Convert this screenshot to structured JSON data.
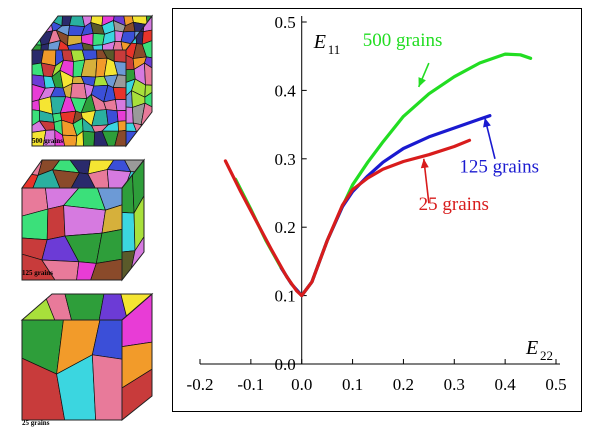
{
  "panels": [
    {
      "label": "500 grains"
    },
    {
      "label": "125 grains"
    },
    {
      "label": "25 grains"
    }
  ],
  "chart_data": {
    "type": "line",
    "title": "",
    "xlabel": "E",
    "xlabel_sub": "22",
    "ylabel": "E",
    "ylabel_sub": "11",
    "xlim": [
      -0.2,
      0.5
    ],
    "ylim": [
      0.0,
      0.5
    ],
    "x_ticks": [
      "-0.2",
      "-0.1",
      "0.0",
      "0.1",
      "0.2",
      "0.3",
      "0.4",
      "0.5"
    ],
    "y_ticks": [
      "0.0",
      "0.1",
      "0.2",
      "0.3",
      "0.4",
      "0.5"
    ],
    "grid": false,
    "series": [
      {
        "name": "500 grains",
        "color": "#22dd22",
        "x": [
          -0.13,
          -0.1,
          -0.07,
          -0.04,
          -0.02,
          0.0,
          0.02,
          0.05,
          0.08,
          0.1,
          0.13,
          0.16,
          0.2,
          0.25,
          0.3,
          0.35,
          0.4,
          0.43,
          0.45
        ],
        "y": [
          0.27,
          0.226,
          0.18,
          0.14,
          0.117,
          0.1,
          0.12,
          0.18,
          0.23,
          0.262,
          0.295,
          0.325,
          0.362,
          0.395,
          0.42,
          0.44,
          0.453,
          0.452,
          0.447
        ]
      },
      {
        "name": "125 grains",
        "color": "#1a1ad0",
        "x": [
          -0.04,
          -0.02,
          0.0,
          0.02,
          0.05,
          0.08,
          0.1,
          0.13,
          0.16,
          0.2,
          0.25,
          0.3,
          0.35,
          0.37
        ],
        "y": [
          0.14,
          0.117,
          0.1,
          0.12,
          0.18,
          0.23,
          0.252,
          0.275,
          0.295,
          0.315,
          0.332,
          0.345,
          0.358,
          0.363
        ]
      },
      {
        "name": "25 grains",
        "color": "#d81c1c",
        "x": [
          -0.15,
          -0.12,
          -0.09,
          -0.06,
          -0.03,
          -0.01,
          0.0,
          0.02,
          0.05,
          0.08,
          0.1,
          0.13,
          0.16,
          0.2,
          0.25,
          0.3,
          0.33
        ],
        "y": [
          0.297,
          0.252,
          0.21,
          0.168,
          0.128,
          0.107,
          0.1,
          0.12,
          0.18,
          0.232,
          0.255,
          0.272,
          0.285,
          0.296,
          0.306,
          0.318,
          0.327
        ]
      }
    ],
    "annotations": [
      {
        "text": "500 grains",
        "color": "#22dd22",
        "tx": 0.12,
        "ty": 0.465,
        "ax": 0.25,
        "ay": 0.44,
        "hx": 0.23,
        "hy": 0.405
      },
      {
        "text": "125 grains",
        "color": "#1a1ad0",
        "tx": 0.31,
        "ty": 0.28,
        "ax": 0.38,
        "ay": 0.3,
        "hx": 0.36,
        "hy": 0.36
      },
      {
        "text": "25 grains",
        "color": "#d81c1c",
        "tx": 0.23,
        "ty": 0.225,
        "ax": 0.25,
        "ay": 0.235,
        "hx": 0.24,
        "hy": 0.3
      }
    ]
  }
}
